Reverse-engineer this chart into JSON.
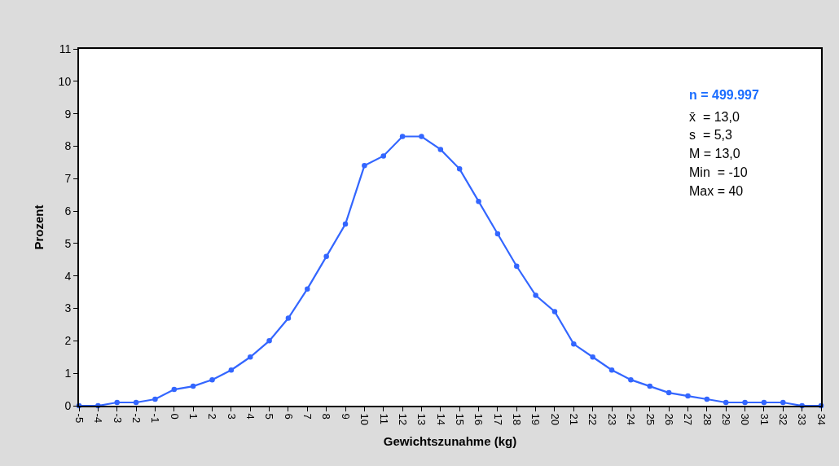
{
  "chart_data": {
    "type": "line",
    "xlabel": "Gewichtszunahme (kg)",
    "ylabel": "Prozent",
    "x": [
      -5,
      -4,
      -3,
      -2,
      -1,
      0,
      1,
      2,
      3,
      4,
      5,
      6,
      7,
      8,
      9,
      10,
      11,
      12,
      13,
      14,
      15,
      16,
      17,
      18,
      19,
      20,
      21,
      22,
      23,
      24,
      25,
      26,
      27,
      28,
      29,
      30,
      31,
      32,
      33,
      34
    ],
    "series": [
      {
        "color": "#3366ff",
        "values": [
          0,
          0,
          0.1,
          0.1,
          0.2,
          0.5,
          0.6,
          0.8,
          1.1,
          1.5,
          2.0,
          2.7,
          3.6,
          4.6,
          5.6,
          7.4,
          7.7,
          8.3,
          8.3,
          7.9,
          7.3,
          6.3,
          5.3,
          4.3,
          3.4,
          2.9,
          1.9,
          1.5,
          1.1,
          0.8,
          0.6,
          0.4,
          0.3,
          0.2,
          0.1,
          0.1,
          0.1,
          0.1,
          0,
          0
        ]
      }
    ],
    "xlim": [
      -5,
      34
    ],
    "xticks": [
      -5,
      -4,
      -3,
      -2,
      -1,
      0,
      1,
      2,
      3,
      4,
      5,
      6,
      7,
      8,
      9,
      10,
      11,
      12,
      13,
      14,
      15,
      16,
      17,
      18,
      19,
      20,
      21,
      22,
      23,
      24,
      25,
      26,
      27,
      28,
      29,
      30,
      31,
      32,
      33,
      34
    ],
    "ylim": [
      0,
      11
    ],
    "yticks": [
      0,
      1,
      2,
      3,
      4,
      5,
      6,
      7,
      8,
      9,
      10,
      11
    ],
    "marker": "circle",
    "line_style": "solid",
    "legend": false,
    "annotations": [
      "n = 499.997",
      "x̄  = 13,0",
      "s  = 5,3",
      "M = 13,0",
      "Min  = -10",
      "Max = 40"
    ]
  }
}
